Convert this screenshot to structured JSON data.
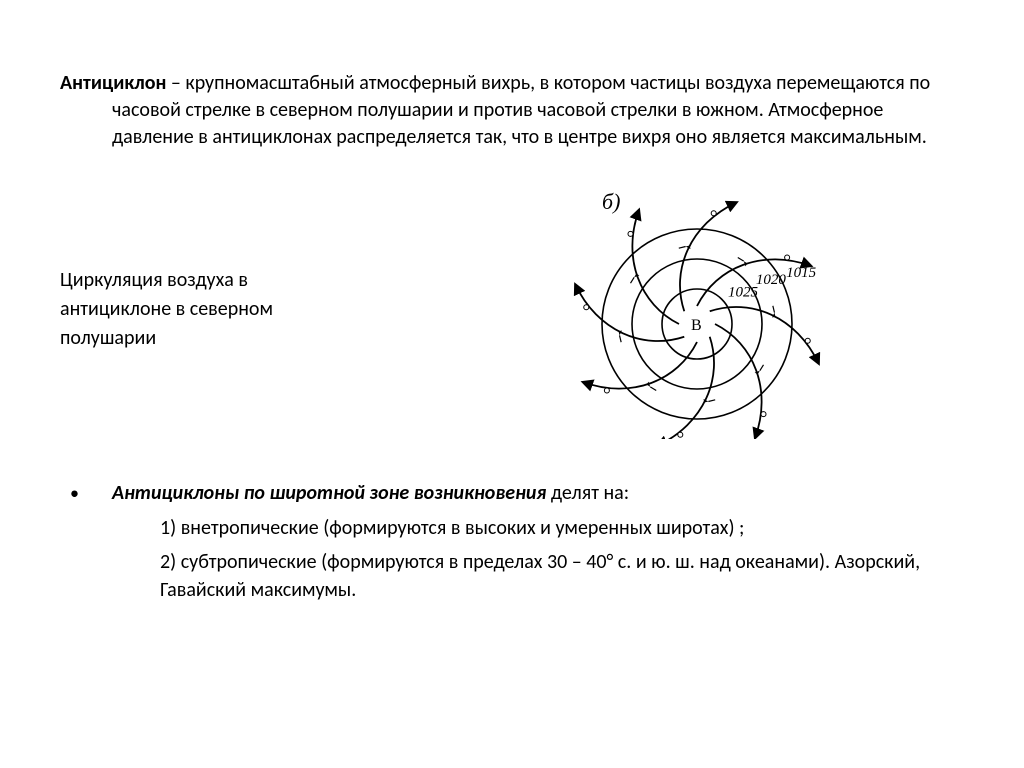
{
  "definition": {
    "term": "Антициклон",
    "body": " – крупномасштабный атмосферный вихрь, в котором частицы воздуха перемещаются по часовой стрелке в северном полушарии и против часовой стрелки в южном. Атмосферное давление в антициклонах распределяется так, что в центре вихря оно является максимальным."
  },
  "caption": {
    "line1": "Циркуляция воздуха в",
    "line2": "антициклоне в северном",
    "line3": "полушарии"
  },
  "diagram": {
    "panel_label": "б)",
    "center_label": "В",
    "isobars": [
      {
        "r": 35,
        "label": "1025"
      },
      {
        "r": 65,
        "label": "1020"
      },
      {
        "r": 95,
        "label": "1015"
      }
    ],
    "stroke": "#000000",
    "stroke_width": 1.6,
    "arrow_stroke_width": 1.8,
    "label_fontsize": 15,
    "center_fontsize": 16,
    "panel_fontsize": 22,
    "num_spirals": 8
  },
  "list": {
    "heading_bold": "Антициклоны по широтной зоне возникновения",
    "heading_rest": " делят на:",
    "item1": "1) внетропические (формируются в высоких и умеренных широтах) ;",
    "item2": "2) субтропические (формируются в пределах 30 – 40° с. и ю. ш. над океанами). Азорский, Гавайский максимумы."
  },
  "colors": {
    "text": "#000000",
    "bg": "#ffffff"
  }
}
